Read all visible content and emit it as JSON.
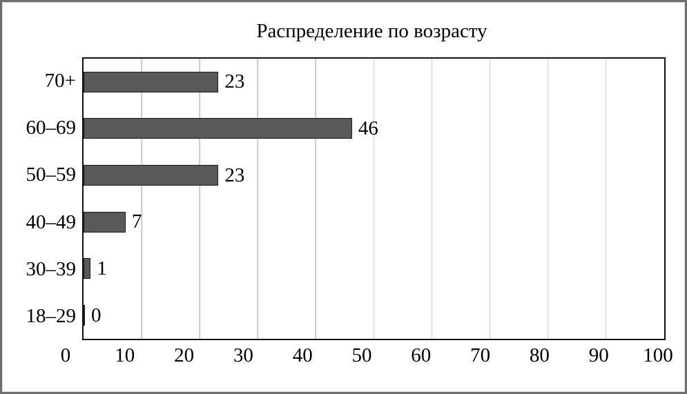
{
  "window": {
    "background_color": "#ffffff",
    "border_color": "#6e6e6e"
  },
  "chart_data": {
    "type": "bar",
    "orientation": "horizontal",
    "title": "Распределение по возрасту",
    "categories": [
      "70+",
      "60–69",
      "50–59",
      "40–49",
      "30–39",
      "18–29"
    ],
    "values": [
      23,
      46,
      23,
      7,
      1,
      0
    ],
    "data_labels": [
      23,
      46,
      23,
      7,
      1,
      0
    ],
    "xlabel": "",
    "ylabel": "",
    "xlim": [
      0,
      100
    ],
    "xticks": [
      0,
      10,
      20,
      30,
      40,
      50,
      60,
      70,
      80,
      90,
      100
    ],
    "grid": "vertical",
    "legend": "none",
    "colors": {
      "bar_fill": "#595959",
      "bar_border": "#1a1a1a",
      "gridline": "#c9c9c9",
      "plot_border": "#111111",
      "text": "#000000"
    }
  }
}
